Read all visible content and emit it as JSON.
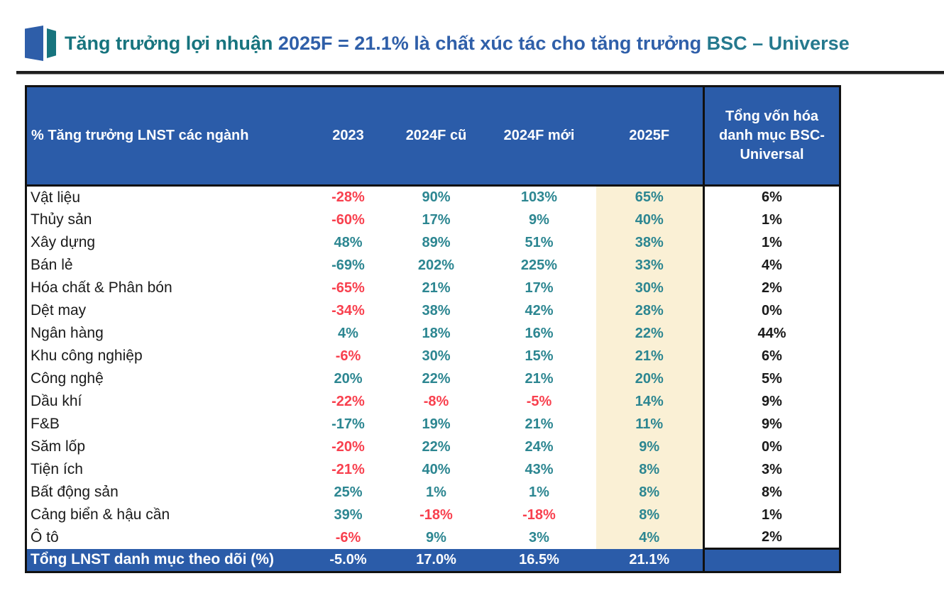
{
  "title": {
    "icon": "bsc-logo",
    "segments": [
      {
        "text": "Tăng trưởng lợi nhuận ",
        "color": "#17747E"
      },
      {
        "text": "2025F = 21.1% là chất xúc tác cho tăng trưởng ",
        "color": "#2F5FA9"
      },
      {
        "text": "BSC – Universe",
        "color": "#25798E"
      }
    ]
  },
  "table": {
    "header": {
      "col_industry": "% Tăng trưởng LNST các ngành",
      "col_2023": "2023",
      "col_2024f_old": "2024F cũ",
      "col_2024f_new": "2024F mới",
      "col_2025f": "2025F",
      "col_mcap": "Tổng vốn hóa danh mục BSC-Universal"
    },
    "rows": [
      {
        "name": "Vật liệu",
        "cells": [
          {
            "t": "-28%",
            "c": "red"
          },
          {
            "t": "90%",
            "c": "teal"
          },
          {
            "t": "103%",
            "c": "teal"
          },
          {
            "t": "65%",
            "c": "teal"
          },
          {
            "t": "6%",
            "c": "black"
          }
        ]
      },
      {
        "name": "Thủy sản",
        "cells": [
          {
            "t": "-60%",
            "c": "red"
          },
          {
            "t": "17%",
            "c": "teal"
          },
          {
            "t": "9%",
            "c": "teal"
          },
          {
            "t": "40%",
            "c": "teal"
          },
          {
            "t": "1%",
            "c": "black"
          }
        ]
      },
      {
        "name": "Xây dựng",
        "cells": [
          {
            "t": "48%",
            "c": "teal"
          },
          {
            "t": "89%",
            "c": "teal"
          },
          {
            "t": "51%",
            "c": "teal"
          },
          {
            "t": "38%",
            "c": "teal"
          },
          {
            "t": "1%",
            "c": "black"
          }
        ]
      },
      {
        "name": "Bán lẻ",
        "cells": [
          {
            "t": "-69%",
            "c": "teal"
          },
          {
            "t": "202%",
            "c": "teal"
          },
          {
            "t": "225%",
            "c": "teal"
          },
          {
            "t": "33%",
            "c": "teal"
          },
          {
            "t": "4%",
            "c": "black"
          }
        ]
      },
      {
        "name": "Hóa chất & Phân bón",
        "cells": [
          {
            "t": "-65%",
            "c": "red"
          },
          {
            "t": "21%",
            "c": "teal"
          },
          {
            "t": "17%",
            "c": "teal"
          },
          {
            "t": "30%",
            "c": "teal"
          },
          {
            "t": "2%",
            "c": "black"
          }
        ]
      },
      {
        "name": "Dệt may",
        "cells": [
          {
            "t": "-34%",
            "c": "red"
          },
          {
            "t": "38%",
            "c": "teal"
          },
          {
            "t": "42%",
            "c": "teal"
          },
          {
            "t": "28%",
            "c": "teal"
          },
          {
            "t": "0%",
            "c": "black"
          }
        ]
      },
      {
        "name": "Ngân hàng",
        "cells": [
          {
            "t": "4%",
            "c": "teal"
          },
          {
            "t": "18%",
            "c": "teal"
          },
          {
            "t": "16%",
            "c": "teal"
          },
          {
            "t": "22%",
            "c": "teal"
          },
          {
            "t": "44%",
            "c": "black"
          }
        ]
      },
      {
        "name": "Khu công nghiệp",
        "cells": [
          {
            "t": "-6%",
            "c": "red"
          },
          {
            "t": "30%",
            "c": "teal"
          },
          {
            "t": "15%",
            "c": "teal"
          },
          {
            "t": "21%",
            "c": "teal"
          },
          {
            "t": "6%",
            "c": "black"
          }
        ]
      },
      {
        "name": "Công nghệ",
        "cells": [
          {
            "t": "20%",
            "c": "teal"
          },
          {
            "t": "22%",
            "c": "teal"
          },
          {
            "t": "21%",
            "c": "teal"
          },
          {
            "t": "20%",
            "c": "teal"
          },
          {
            "t": "5%",
            "c": "black"
          }
        ]
      },
      {
        "name": "Dầu khí",
        "cells": [
          {
            "t": "-22%",
            "c": "red"
          },
          {
            "t": "-8%",
            "c": "red"
          },
          {
            "t": "-5%",
            "c": "red"
          },
          {
            "t": "14%",
            "c": "teal"
          },
          {
            "t": "9%",
            "c": "black"
          }
        ]
      },
      {
        "name": "F&B",
        "cells": [
          {
            "t": "-17%",
            "c": "teal"
          },
          {
            "t": "19%",
            "c": "teal"
          },
          {
            "t": "21%",
            "c": "teal"
          },
          {
            "t": "11%",
            "c": "teal"
          },
          {
            "t": "9%",
            "c": "black"
          }
        ]
      },
      {
        "name": "Săm lốp",
        "cells": [
          {
            "t": "-20%",
            "c": "red"
          },
          {
            "t": "22%",
            "c": "teal"
          },
          {
            "t": "24%",
            "c": "teal"
          },
          {
            "t": "9%",
            "c": "teal"
          },
          {
            "t": "0%",
            "c": "black"
          }
        ]
      },
      {
        "name": "Tiện ích",
        "cells": [
          {
            "t": "-21%",
            "c": "red"
          },
          {
            "t": "40%",
            "c": "teal"
          },
          {
            "t": "43%",
            "c": "teal"
          },
          {
            "t": "8%",
            "c": "teal"
          },
          {
            "t": "3%",
            "c": "black"
          }
        ]
      },
      {
        "name": "Bất động sản",
        "cells": [
          {
            "t": "25%",
            "c": "teal"
          },
          {
            "t": "1%",
            "c": "teal"
          },
          {
            "t": "1%",
            "c": "teal"
          },
          {
            "t": "8%",
            "c": "teal"
          },
          {
            "t": "8%",
            "c": "black"
          }
        ]
      },
      {
        "name": "Cảng biển & hậu cần",
        "cells": [
          {
            "t": "39%",
            "c": "teal"
          },
          {
            "t": "-18%",
            "c": "red"
          },
          {
            "t": "-18%",
            "c": "red"
          },
          {
            "t": "8%",
            "c": "teal"
          },
          {
            "t": "1%",
            "c": "black"
          }
        ]
      },
      {
        "name": "Ô tô",
        "cells": [
          {
            "t": "-6%",
            "c": "red"
          },
          {
            "t": "9%",
            "c": "teal"
          },
          {
            "t": "3%",
            "c": "teal"
          },
          {
            "t": "4%",
            "c": "teal"
          },
          {
            "t": "2%",
            "c": "black"
          }
        ]
      }
    ],
    "total": {
      "name": "Tổng LNST danh mục theo dõi (%)",
      "cells": [
        "-5.0%",
        "17.0%",
        "16.5%",
        "21.1%",
        ""
      ]
    }
  },
  "colors": {
    "header_bg": "#2B5CA9",
    "header_text": "#FFFFFF",
    "highlight_col_bg": "#FAF0D5",
    "positive": "#2C8691",
    "negative": "#F8404E",
    "neutral": "#1A1A1A",
    "logo_blue": "#2E5EA9",
    "logo_teal": "#17747E"
  }
}
